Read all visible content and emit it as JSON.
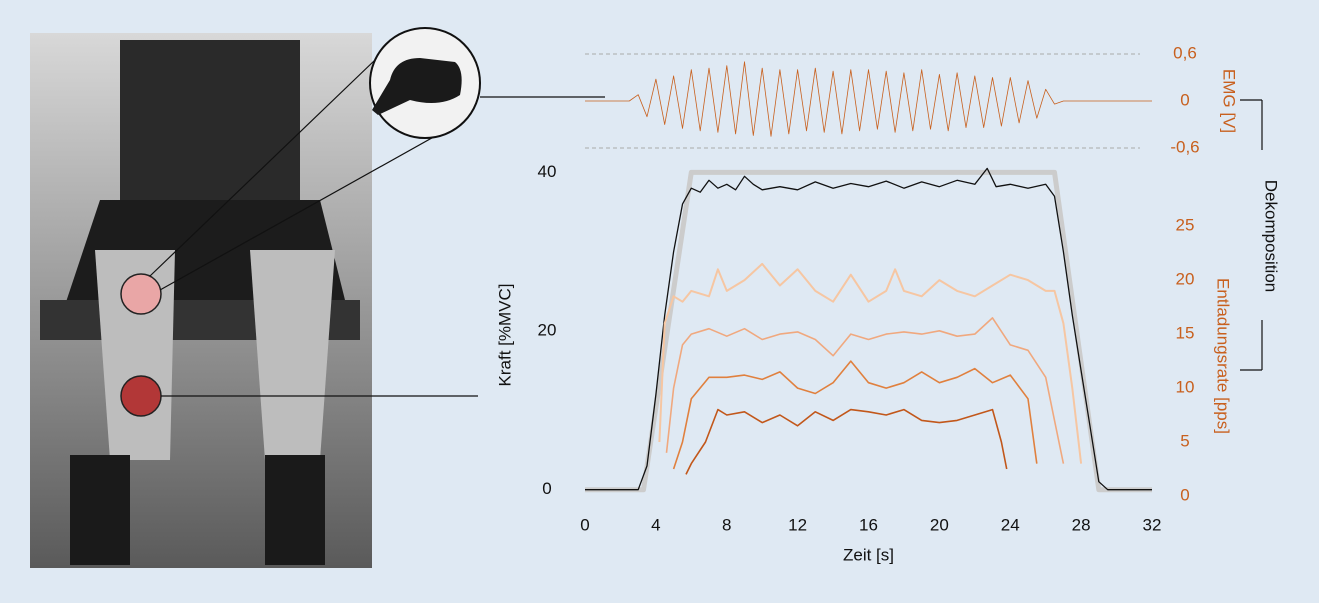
{
  "chart_data": [
    {
      "type": "line",
      "ylabel": "EMG [V]",
      "ylim": [
        -0.6,
        0.6
      ],
      "yticks": [
        {
          "value": 0.6,
          "label": "0,6"
        },
        0,
        {
          "value": -0.6,
          "label": "-0,6"
        }
      ],
      "xlim": [
        0,
        32
      ],
      "grid": true,
      "series": [
        {
          "color": "#c8601e",
          "x": [
            0,
            0.5,
            1,
            1.5,
            2,
            2.5,
            3,
            3.5,
            4,
            4.5,
            5,
            5.5,
            6,
            6.5,
            7,
            7.5,
            8,
            8.5,
            9,
            9.5,
            10,
            10.5,
            11,
            11.5,
            12,
            12.5,
            13,
            13.5,
            14,
            14.5,
            15,
            15.5,
            16,
            16.5,
            17,
            17.5,
            18,
            18.5,
            19,
            19.5,
            20,
            20.5,
            21,
            21.5,
            22,
            22.5,
            23,
            23.5,
            24,
            24.5,
            25,
            25.5,
            26,
            26.5,
            27,
            27.5,
            28,
            28.5,
            29,
            29.5,
            30,
            30.5,
            31,
            31.5,
            32
          ],
          "values": [
            0,
            0,
            0,
            0,
            0,
            0,
            0.08,
            -0.2,
            0.28,
            -0.3,
            0.32,
            -0.35,
            0.4,
            -0.38,
            0.42,
            -0.4,
            0.45,
            -0.42,
            0.5,
            -0.44,
            0.42,
            -0.45,
            0.4,
            -0.42,
            0.4,
            -0.38,
            0.42,
            -0.4,
            0.38,
            -0.42,
            0.4,
            -0.38,
            0.4,
            -0.36,
            0.38,
            -0.4,
            0.36,
            -0.38,
            0.4,
            -0.36,
            0.34,
            -0.38,
            0.36,
            -0.34,
            0.32,
            -0.34,
            0.3,
            -0.32,
            0.3,
            -0.28,
            0.26,
            -0.22,
            0.15,
            -0.04,
            0,
            0,
            0,
            0,
            0,
            0,
            0,
            0,
            0,
            0,
            0
          ]
        }
      ]
    },
    {
      "type": "line",
      "xlabel": "Zeit [s]",
      "ylabel": "Kraft [%MVC]",
      "y2label": "Entladungsrate [pps]",
      "annotation": "Dekomposition",
      "xlim": [
        0,
        32
      ],
      "xticks": [
        0,
        4,
        8,
        12,
        16,
        20,
        24,
        28,
        32
      ],
      "ylim": [
        -0.8,
        40.3
      ],
      "yticks": [
        0,
        20,
        40
      ],
      "y2lim": [
        0,
        30.2
      ],
      "y2ticks": [
        0,
        5,
        10,
        15,
        20,
        25
      ],
      "y2color": "#c8601e",
      "series": [
        {
          "color": "#cccccc",
          "line_width": 5,
          "x": [
            0,
            3.3,
            6,
            26.5,
            29,
            32
          ],
          "values": [
            0,
            0,
            40,
            40,
            0,
            0
          ]
        },
        {
          "color": "#111111",
          "line_width": 1.3,
          "x": [
            0,
            3,
            3.5,
            4,
            4.5,
            5,
            5.5,
            6,
            6.5,
            7,
            7.5,
            8,
            8.5,
            9,
            9.5,
            10,
            11,
            12,
            13,
            14,
            15,
            16,
            17,
            18,
            19,
            20,
            21,
            22,
            22.7,
            23.2,
            24,
            25,
            26,
            26.5,
            27,
            27.5,
            28,
            28.5,
            29,
            29.5,
            32
          ],
          "values": [
            0,
            0,
            3,
            12,
            22,
            30,
            36,
            38,
            37.5,
            39,
            38,
            38.5,
            37.8,
            39.5,
            38.5,
            37.8,
            38.2,
            37.8,
            38.8,
            38,
            38.6,
            38.2,
            38.9,
            38,
            38.8,
            38.2,
            39,
            38.5,
            40.5,
            38.2,
            38.5,
            38,
            38.5,
            37,
            30,
            22,
            15,
            8,
            1,
            0,
            0
          ]
        },
        {
          "color": "#f6c6a2",
          "line_width": 2,
          "axis": "y2",
          "x": [
            4.2,
            4.5,
            5,
            5.5,
            6,
            7,
            7.5,
            8,
            9,
            10,
            11,
            12,
            13,
            14,
            15,
            16,
            17,
            17.5,
            18,
            19,
            20,
            21,
            22,
            23,
            24,
            25,
            26,
            26.5,
            27,
            27.5,
            28
          ],
          "values": [
            5,
            16,
            18.5,
            18,
            19,
            18.5,
            21,
            19,
            20,
            21.5,
            19.5,
            21,
            19,
            18,
            20.5,
            18,
            19,
            21,
            19,
            18.5,
            20,
            19,
            18.5,
            19.5,
            20.5,
            20,
            19,
            19,
            16,
            10,
            3
          ]
        },
        {
          "color": "#f0a87e",
          "line_width": 1.6,
          "axis": "y2",
          "x": [
            4.6,
            5,
            5.5,
            6,
            7,
            8,
            9,
            10,
            11,
            12,
            13,
            14,
            15,
            16,
            17,
            18,
            19,
            20,
            21,
            22,
            23,
            24,
            25,
            26,
            26.5,
            27
          ],
          "values": [
            4,
            10,
            14,
            15,
            15.5,
            14.8,
            15.5,
            14.5,
            15,
            15.2,
            14.5,
            13,
            15,
            14.5,
            15,
            15.2,
            15,
            15.3,
            14.8,
            15,
            16.5,
            14,
            13.5,
            11,
            7,
            3
          ]
        },
        {
          "color": "#e0803e",
          "line_width": 1.6,
          "axis": "y2",
          "x": [
            5,
            5.5,
            6,
            7,
            8,
            9,
            10,
            11,
            12,
            13,
            14,
            15,
            16,
            17,
            18,
            19,
            20,
            21,
            22,
            23,
            24,
            25,
            25.5
          ],
          "values": [
            2.5,
            5,
            9,
            11,
            11,
            11.2,
            10.8,
            11.5,
            10,
            9.5,
            10.5,
            12.5,
            10.5,
            10,
            10.5,
            11.5,
            10.5,
            11,
            11.8,
            10.5,
            11.2,
            9,
            3
          ]
        },
        {
          "color": "#c2571a",
          "line_width": 1.6,
          "axis": "y2",
          "x": [
            5.7,
            6,
            6.8,
            7.5,
            8,
            9,
            10,
            11,
            12,
            13,
            14,
            15,
            16,
            17,
            18,
            19,
            20,
            21,
            22,
            23,
            23.5,
            23.8
          ],
          "values": [
            2,
            3,
            5,
            8,
            7.5,
            7.8,
            6.8,
            7.5,
            6.5,
            7.8,
            7,
            8,
            7.8,
            7.5,
            8,
            7,
            6.8,
            7,
            7.5,
            8,
            5,
            2.5
          ]
        }
      ]
    }
  ]
}
